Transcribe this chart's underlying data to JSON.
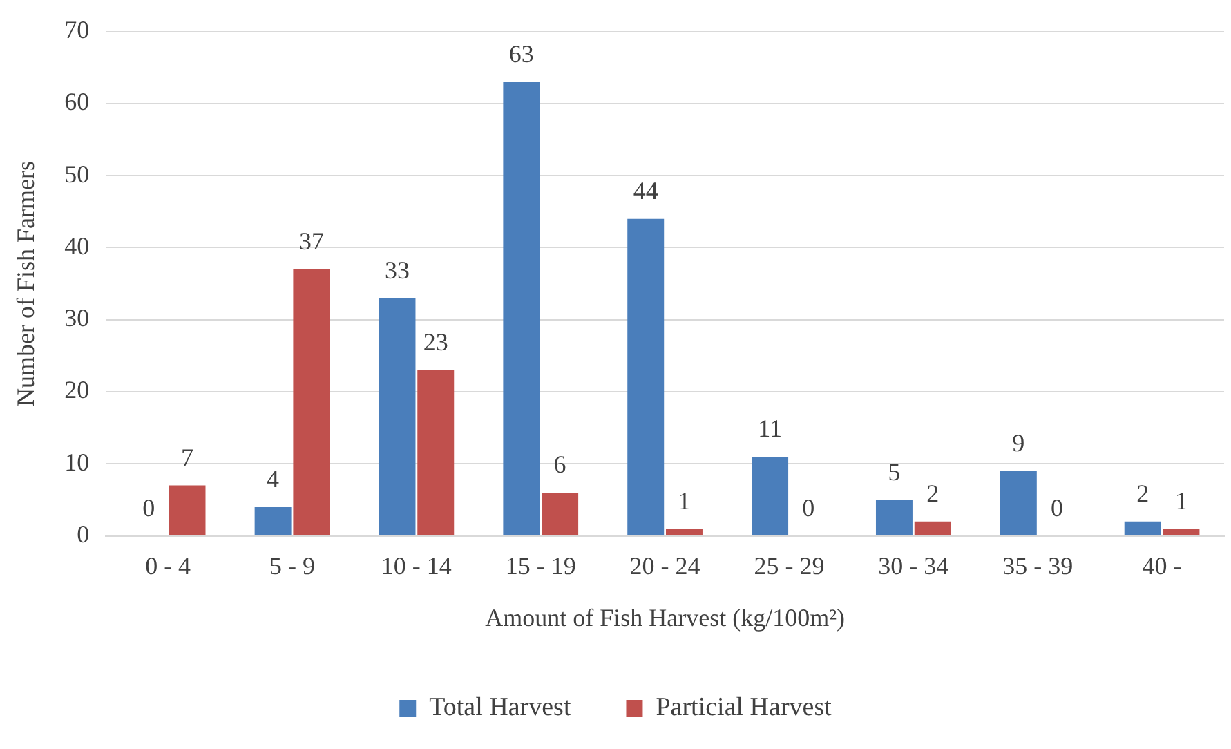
{
  "chart_data": {
    "type": "bar",
    "xlabel": "Amount of Fish Harvest (kg/100m²)",
    "ylabel": "Number of Fish Farmers",
    "categories": [
      "0 - 4",
      "5 - 9",
      "10 - 14",
      "15 - 19",
      "20 - 24",
      "25 - 29",
      "30 - 34",
      "35 - 39",
      "40 -"
    ],
    "series": [
      {
        "name": "Total Harvest",
        "color": "#4a7ebb",
        "values": [
          0,
          4,
          33,
          63,
          44,
          11,
          5,
          9,
          2
        ]
      },
      {
        "name": "Particial Harvest",
        "color": "#c0504d",
        "values": [
          7,
          37,
          23,
          6,
          1,
          0,
          2,
          0,
          1
        ]
      }
    ],
    "ylim": [
      0,
      70
    ],
    "yticks": [
      0,
      10,
      20,
      30,
      40,
      50,
      60,
      70
    ],
    "grid": "y",
    "legend": "bottom",
    "data_labels": true
  }
}
